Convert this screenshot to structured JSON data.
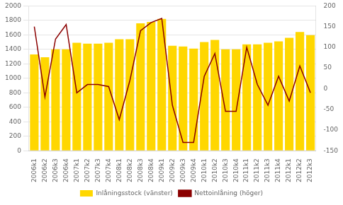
{
  "chart_data": {
    "type": "bar",
    "categories": [
      "2006k1",
      "2006k2",
      "2006k3",
      "2006k4",
      "2007k1",
      "2007k2",
      "2007k3",
      "2007k4",
      "2008k1",
      "2008k2",
      "2008k3",
      "2008k4",
      "2009k1",
      "2009k2",
      "2009k3",
      "2009k4",
      "2010k1",
      "2010k2",
      "2010k3",
      "2010k4",
      "2011k1",
      "2011k2",
      "2011k3",
      "2011k4",
      "2012k1",
      "2012k2",
      "2012k3"
    ],
    "series": [
      {
        "name": "Inlåningsstock (vänster)",
        "type": "bar",
        "color": "#FFD700",
        "values": [
          1330,
          1290,
          1400,
          1400,
          1490,
          1480,
          1480,
          1490,
          1540,
          1540,
          1760,
          1780,
          1820,
          1450,
          1440,
          1410,
          1500,
          1530,
          1400,
          1400,
          1470,
          1470,
          1490,
          1510,
          1560,
          1640,
          1595
        ]
      },
      {
        "name": "Nettoinlåning (höger)",
        "type": "line",
        "axis": "y2",
        "color": "#8B0000",
        "values": [
          150,
          -20,
          120,
          155,
          -10,
          10,
          10,
          5,
          -75,
          20,
          140,
          160,
          170,
          -40,
          -130,
          -130,
          30,
          85,
          -55,
          -55,
          100,
          10,
          -40,
          30,
          -30,
          55,
          -10
        ]
      }
    ],
    "ylim": [
      0,
      2000
    ],
    "yticks": [
      0,
      200,
      400,
      600,
      800,
      1000,
      1200,
      1400,
      1600,
      1800,
      2000
    ],
    "y2lim": [
      -150,
      200
    ],
    "y2ticks": [
      -150,
      -100,
      -50,
      0,
      50,
      100,
      150,
      200
    ],
    "grid": true,
    "legend": "bottom"
  }
}
